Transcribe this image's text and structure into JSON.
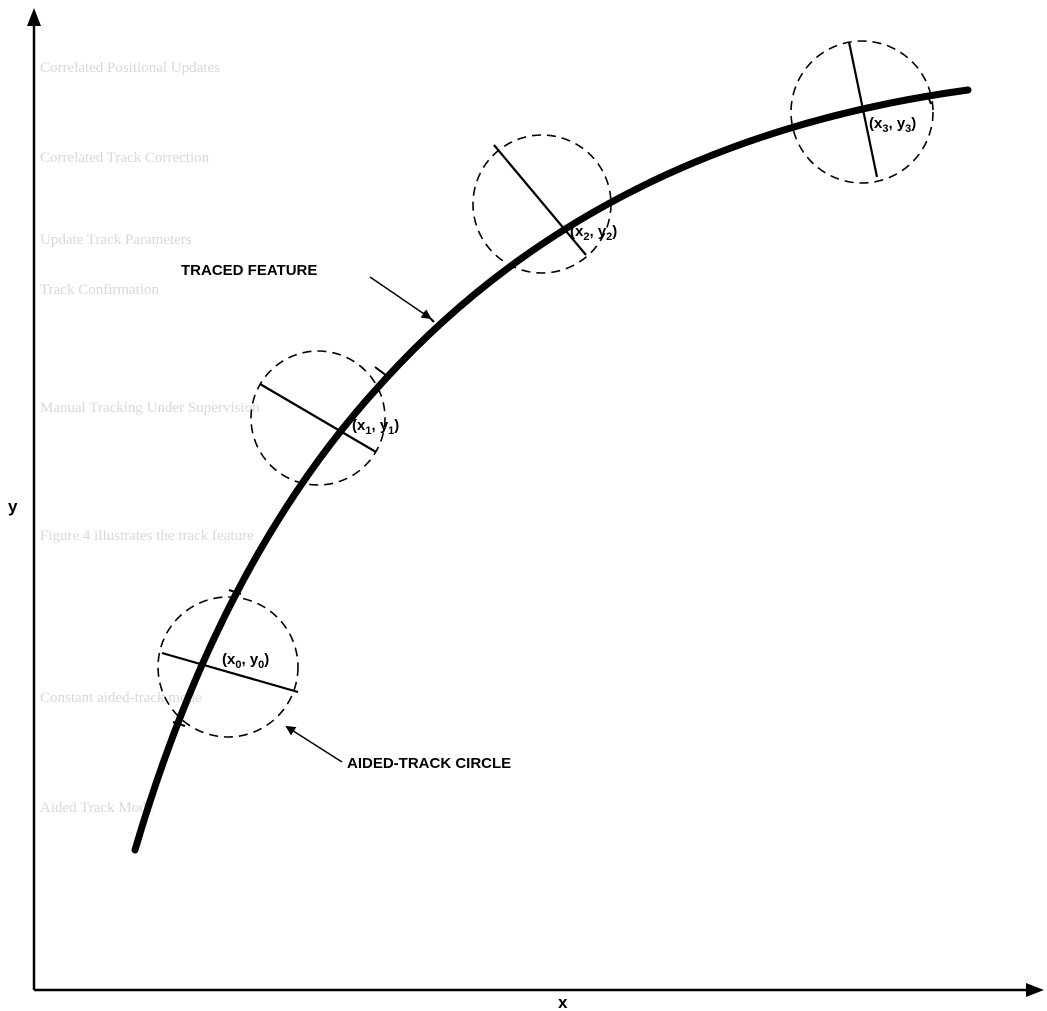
{
  "axes": {
    "x_label": "x",
    "y_label": "y"
  },
  "labels": {
    "traced_feature": "TRACED FEATURE",
    "aided_track_circle": "AIDED-TRACK CIRCLE"
  },
  "points": [
    {
      "x": "x",
      "y": "y",
      "sub": "0"
    },
    {
      "x": "x",
      "y": "y",
      "sub": "1"
    },
    {
      "x": "x",
      "y": "y",
      "sub": "2"
    },
    {
      "x": "x",
      "y": "y",
      "sub": "3"
    }
  ],
  "background_text": [
    "Correlated Positional Updates",
    "Correlated Track Correction",
    "Update Track Parameters",
    "Track Confirmation",
    "Manual Tracking Under Supervision",
    "Figure 4 illustrates the track feature",
    "Constant aided-track mode",
    "Aided Track Mode"
  ]
}
